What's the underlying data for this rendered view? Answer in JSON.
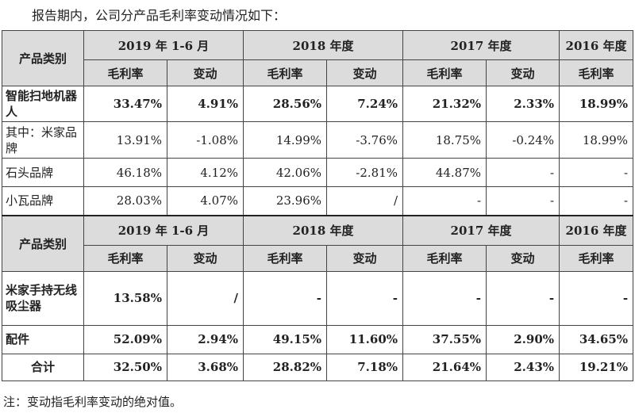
{
  "intro": "报告期内，公司分产品毛利率变动情况如下：",
  "note": "注：变动指毛利率变动的绝对值。",
  "header": {
    "category": "产品类别",
    "periods": [
      "2019 年 1-6 月",
      "2018 年度",
      "2017 年度",
      "2016 年度"
    ],
    "margin": "毛利率",
    "change": "变动"
  },
  "section1": [
    {
      "cat": "智能扫地机器人",
      "bold": true,
      "v": [
        "33.47%",
        "4.91%",
        "28.56%",
        "7.24%",
        "21.32%",
        "2.33%",
        "18.99%"
      ]
    },
    {
      "cat": "其中：米家品牌",
      "bold": false,
      "v": [
        "13.91%",
        "-1.08%",
        "14.99%",
        "-3.76%",
        "18.75%",
        "-0.24%",
        "18.99%"
      ]
    },
    {
      "cat": "石头品牌",
      "bold": false,
      "v": [
        "46.18%",
        "4.12%",
        "42.06%",
        "-2.81%",
        "44.87%",
        "-",
        "-"
      ]
    },
    {
      "cat": "小瓦品牌",
      "bold": false,
      "v": [
        "28.03%",
        "4.07%",
        "23.96%",
        "/",
        "-",
        "-",
        "-"
      ]
    }
  ],
  "section2": [
    {
      "cat": "米家手持无线吸尘器",
      "bold": true,
      "v": [
        "13.58%",
        "/",
        "-",
        "-",
        "-",
        "-",
        "-"
      ]
    },
    {
      "cat": "配件",
      "bold": true,
      "v": [
        "52.09%",
        "2.94%",
        "49.15%",
        "11.60%",
        "37.55%",
        "2.90%",
        "34.65%"
      ]
    },
    {
      "cat": "合计",
      "bold": true,
      "center": true,
      "v": [
        "32.50%",
        "3.68%",
        "28.82%",
        "7.18%",
        "21.64%",
        "2.43%",
        "19.21%"
      ]
    }
  ]
}
